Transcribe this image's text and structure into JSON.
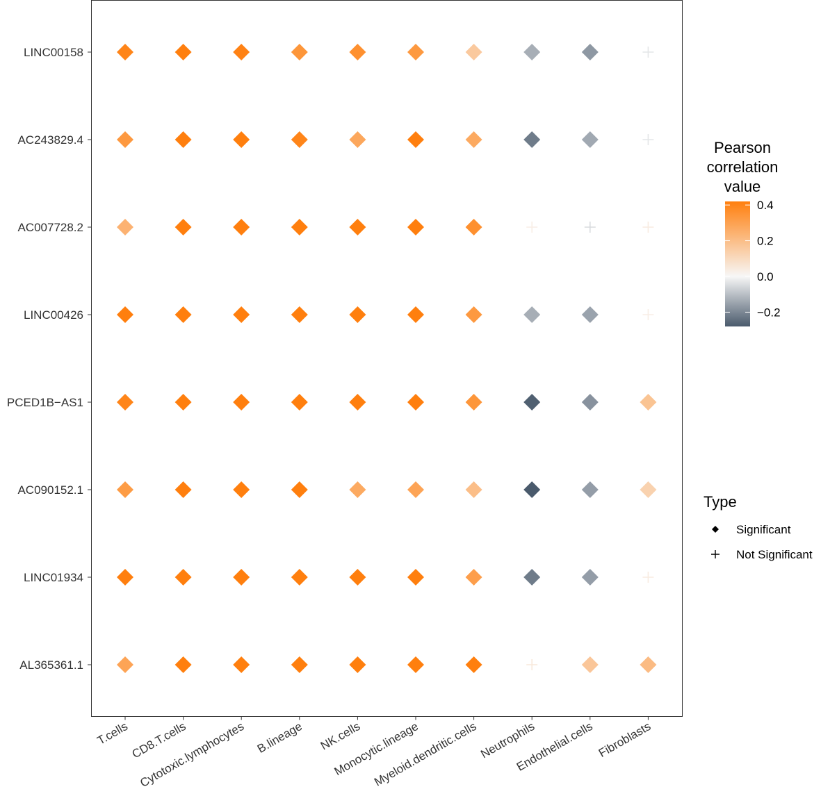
{
  "chart_data": {
    "type": "scatter",
    "title": "",
    "xlabel": "",
    "ylabel": "",
    "x_categories": [
      "T.cells",
      "CD8.T.cells",
      "Cytotoxic.lymphocytes",
      "B.lineage",
      "NK.cells",
      "Monocytic.lineage",
      "Myeloid.dendritic.cells",
      "Neutrophils",
      "Endothelial.cells",
      "Fibroblasts"
    ],
    "y_categories": [
      "LINC00158",
      "AC243829.4",
      "AC007728.2",
      "LINC00426",
      "PCED1B−AS1",
      "AC090152.1",
      "LINC01934",
      "AL365361.1"
    ],
    "values": [
      [
        0.4,
        0.42,
        0.41,
        0.34,
        0.36,
        0.33,
        0.16,
        -0.13,
        -0.17,
        -0.03
      ],
      [
        0.33,
        0.42,
        0.42,
        0.4,
        0.28,
        0.42,
        0.27,
        -0.22,
        -0.14,
        -0.03
      ],
      [
        0.24,
        0.42,
        0.42,
        0.42,
        0.42,
        0.42,
        0.36,
        0.03,
        -0.05,
        0.04
      ],
      [
        0.42,
        0.42,
        0.42,
        0.42,
        0.42,
        0.42,
        0.33,
        -0.13,
        -0.15,
        0.03
      ],
      [
        0.4,
        0.42,
        0.42,
        0.42,
        0.42,
        0.42,
        0.34,
        -0.27,
        -0.18,
        0.18
      ],
      [
        0.32,
        0.42,
        0.42,
        0.42,
        0.27,
        0.29,
        0.2,
        -0.28,
        -0.16,
        0.13
      ],
      [
        0.42,
        0.42,
        0.42,
        0.42,
        0.42,
        0.42,
        0.31,
        -0.22,
        -0.16,
        0.04
      ],
      [
        0.29,
        0.42,
        0.42,
        0.42,
        0.42,
        0.42,
        0.42,
        0.05,
        0.17,
        0.21
      ]
    ],
    "significant": [
      [
        true,
        true,
        true,
        true,
        true,
        true,
        true,
        true,
        true,
        false
      ],
      [
        true,
        true,
        true,
        true,
        true,
        true,
        true,
        true,
        true,
        false
      ],
      [
        true,
        true,
        true,
        true,
        true,
        true,
        true,
        false,
        false,
        false
      ],
      [
        true,
        true,
        true,
        true,
        true,
        true,
        true,
        true,
        true,
        false
      ],
      [
        true,
        true,
        true,
        true,
        true,
        true,
        true,
        true,
        true,
        true
      ],
      [
        true,
        true,
        true,
        true,
        true,
        true,
        true,
        true,
        true,
        true
      ],
      [
        true,
        true,
        true,
        true,
        true,
        true,
        true,
        true,
        true,
        false
      ],
      [
        true,
        true,
        true,
        true,
        true,
        true,
        true,
        false,
        true,
        true
      ]
    ],
    "color_scale": {
      "title_lines": [
        "Pearson",
        "correlation",
        "value"
      ],
      "min": -0.28,
      "max": 0.42,
      "ticks": [
        0.4,
        0.2,
        0.0,
        -0.2
      ],
      "tick_labels": [
        "0.4",
        "0.2",
        "0.0",
        "−0.2"
      ],
      "high_color": "#ff7f0e",
      "mid_color": "#f7f7f7",
      "low_color": "#4a5a6c"
    },
    "shape_legend": {
      "title": "Type",
      "items": [
        {
          "label": "Significant",
          "shape": "diamond"
        },
        {
          "label": "Not Significant",
          "shape": "plus"
        }
      ]
    },
    "legend_position": "right",
    "grid": false
  }
}
